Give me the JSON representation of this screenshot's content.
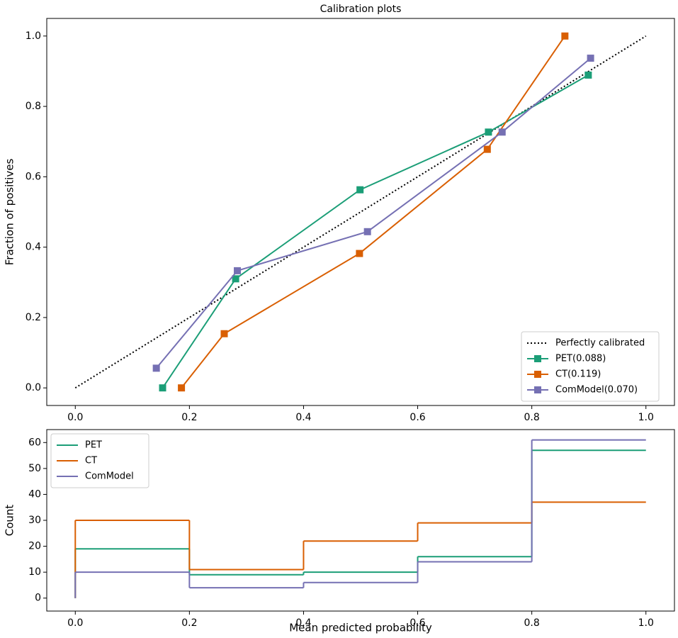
{
  "chart_data": [
    {
      "type": "line",
      "title": "Calibration plots",
      "ylabel": "Fraction of positives",
      "xlim": [
        -0.05,
        1.05
      ],
      "ylim": [
        -0.05,
        1.05
      ],
      "xticks": [
        {
          "value": 0,
          "label": "0.0"
        },
        0.2,
        0.4,
        0.6,
        0.8,
        {
          "value": 1,
          "label": "1.0"
        }
      ],
      "yticks": [
        {
          "value": 0,
          "label": "0.0"
        },
        0.2,
        0.4,
        0.6,
        0.8,
        {
          "value": 1,
          "label": "1.0"
        }
      ],
      "legend": "lower right",
      "series": [
        {
          "name": "Perfectly calibrated",
          "color": "#000000",
          "linestyle": "dotted",
          "marker": "none",
          "x": [
            0,
            1
          ],
          "values": [
            0,
            1
          ]
        },
        {
          "name": "PET(0.088)",
          "color": "#1b9e77",
          "linestyle": "solid",
          "marker": "square",
          "x": [
            0.153,
            0.281,
            0.499,
            0.724,
            0.899
          ],
          "values": [
            0,
            0.31,
            0.563,
            0.727,
            0.889
          ]
        },
        {
          "name": "CT(0.119)",
          "color": "#d95f02",
          "linestyle": "solid",
          "marker": "square",
          "x": [
            0.186,
            0.261,
            0.498,
            0.722,
            0.858
          ],
          "values": [
            0,
            0.154,
            0.382,
            0.678,
            1.0
          ]
        },
        {
          "name": "ComModel(0.070)",
          "color": "#7570b3",
          "linestyle": "solid",
          "marker": "square",
          "x": [
            0.142,
            0.284,
            0.512,
            0.748,
            0.903
          ],
          "values": [
            0.056,
            0.333,
            0.444,
            0.727,
            0.937
          ]
        }
      ]
    },
    {
      "type": "histogram",
      "xlabel": "Mean predicted probability",
      "ylabel": "Count",
      "xlim": [
        -0.05,
        1.05
      ],
      "ylim": [
        -5,
        65
      ],
      "xticks": [
        {
          "value": 0,
          "label": "0.0"
        },
        0.2,
        0.4,
        0.6,
        0.8,
        {
          "value": 1,
          "label": "1.0"
        }
      ],
      "yticks": [
        0,
        10,
        20,
        30,
        40,
        50,
        60
      ],
      "legend": "upper left",
      "bins": [
        0,
        0.2,
        0.4,
        0.6,
        0.8,
        1.0
      ],
      "series": [
        {
          "name": "PET",
          "color": "#1b9e77",
          "values": [
            19,
            9,
            10,
            16,
            57
          ]
        },
        {
          "name": "CT",
          "color": "#d95f02",
          "values": [
            30,
            11,
            22,
            29,
            37
          ]
        },
        {
          "name": "ComModel",
          "color": "#7570b3",
          "values": [
            10,
            4,
            6,
            14,
            61
          ]
        }
      ]
    }
  ]
}
